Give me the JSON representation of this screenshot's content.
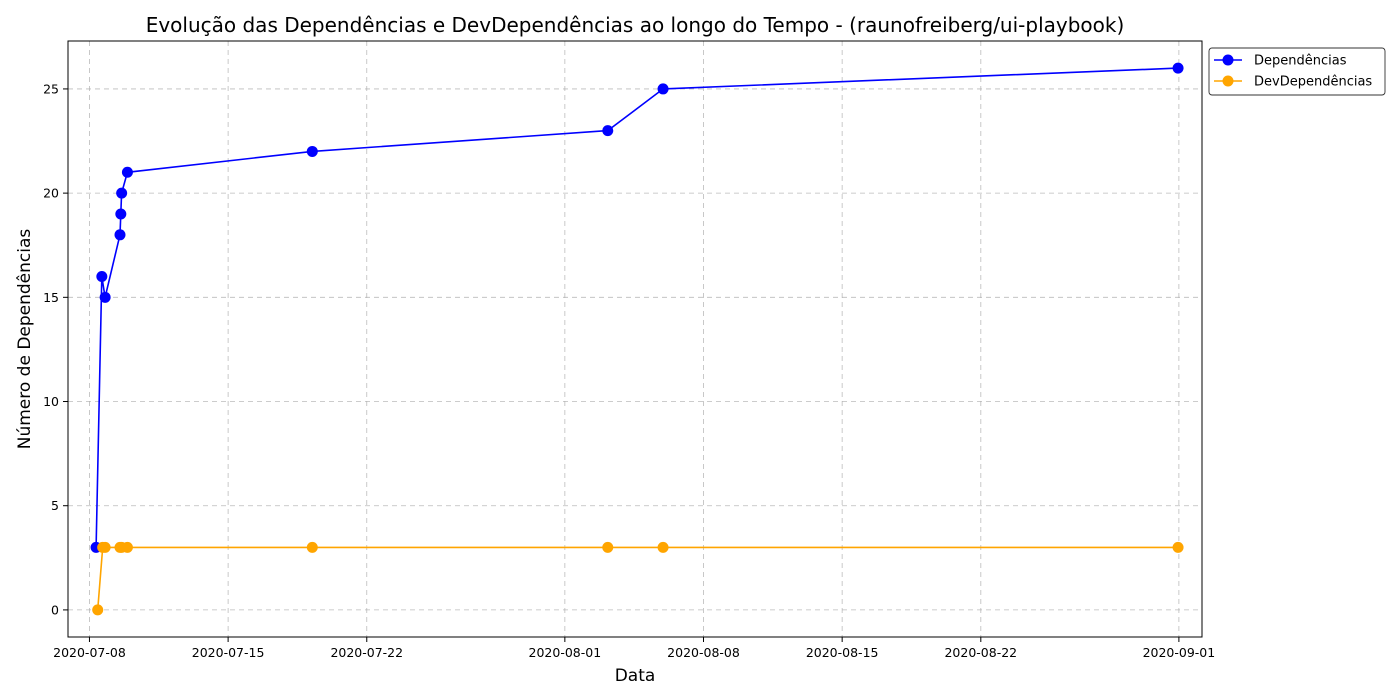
{
  "chart_data": {
    "type": "line",
    "title": "Evolução das Dependências e DevDependências ao longo do Tempo - (raunofreiberg/ui-playbook)",
    "xlabel": "Data",
    "ylabel": "Número de Dependências",
    "x_axis_type": "date",
    "xlim": [
      "2020-07-06T22:00",
      "2020-09-02T04:00"
    ],
    "ylim": [
      -1.3,
      27.3
    ],
    "x_ticks": [
      "2020-07-08",
      "2020-07-15",
      "2020-07-22",
      "2020-08-01",
      "2020-08-08",
      "2020-08-15",
      "2020-08-22",
      "2020-09-01"
    ],
    "y_ticks": [
      0,
      5,
      10,
      15,
      20,
      25
    ],
    "grid": true,
    "legend_position": "upper right, outside plot",
    "series": [
      {
        "name": "Dependências",
        "color": "#0000ff",
        "marker": "circle",
        "points": [
          [
            "2020-07-08T08:00",
            3
          ],
          [
            "2020-07-08T15:00",
            16
          ],
          [
            "2020-07-08T19:00",
            15
          ],
          [
            "2020-07-09T13:00",
            18
          ],
          [
            "2020-07-09T14:00",
            19
          ],
          [
            "2020-07-09T15:00",
            20
          ],
          [
            "2020-07-09T22:00",
            21
          ],
          [
            "2020-07-19T06:00",
            22
          ],
          [
            "2020-08-03T04:00",
            23
          ],
          [
            "2020-08-05T23:00",
            25
          ],
          [
            "2020-08-31T23:00",
            26
          ]
        ]
      },
      {
        "name": "DevDependências",
        "color": "#ffa500",
        "marker": "circle",
        "points": [
          [
            "2020-07-08T10:00",
            0
          ],
          [
            "2020-07-08T16:00",
            3
          ],
          [
            "2020-07-08T19:00",
            3
          ],
          [
            "2020-07-09T13:00",
            3
          ],
          [
            "2020-07-09T15:00",
            3
          ],
          [
            "2020-07-09T22:00",
            3
          ],
          [
            "2020-07-19T06:00",
            3
          ],
          [
            "2020-08-03T04:00",
            3
          ],
          [
            "2020-08-05T23:00",
            3
          ],
          [
            "2020-08-31T23:00",
            3
          ]
        ]
      }
    ]
  }
}
